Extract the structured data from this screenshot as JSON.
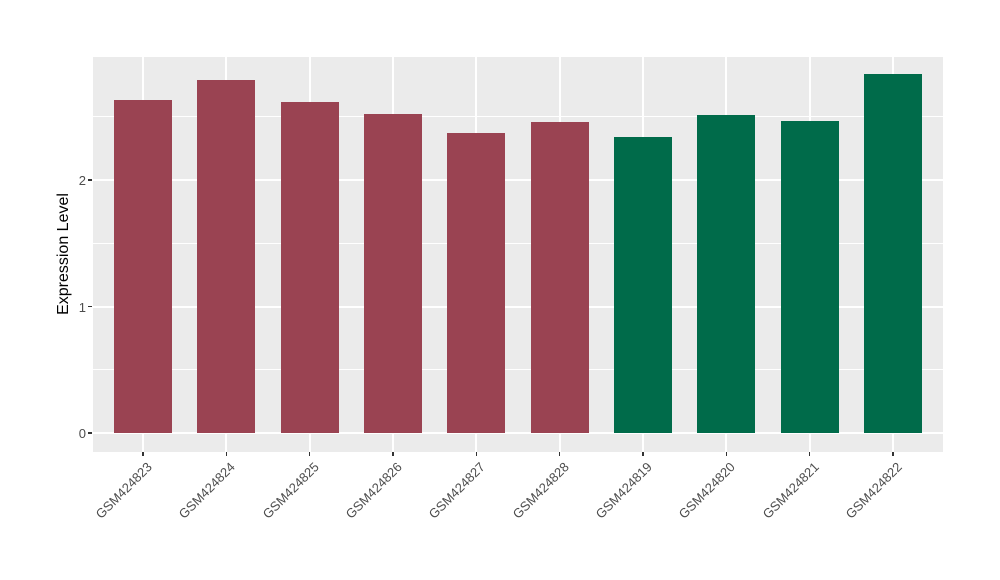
{
  "chart_data": {
    "type": "bar",
    "title": "",
    "xlabel": "",
    "ylabel": "Expression Level",
    "categories": [
      "GSM424823",
      "GSM424824",
      "GSM424825",
      "GSM424826",
      "GSM424827",
      "GSM424828",
      "GSM424819",
      "GSM424820",
      "GSM424821",
      "GSM424822"
    ],
    "values": [
      2.63,
      2.79,
      2.62,
      2.52,
      2.37,
      2.46,
      2.34,
      2.51,
      2.47,
      2.84
    ],
    "bar_colors": [
      "#9A4352",
      "#9A4352",
      "#9A4352",
      "#9A4352",
      "#9A4352",
      "#9A4352",
      "#006B4A",
      "#006B4A",
      "#006B4A",
      "#006B4A"
    ],
    "groups": [
      {
        "name": "group-red",
        "color": "#9A4352",
        "members": [
          "GSM424823",
          "GSM424824",
          "GSM424825",
          "GSM424826",
          "GSM424827",
          "GSM424828"
        ]
      },
      {
        "name": "group-green",
        "color": "#006B4A",
        "members": [
          "GSM424819",
          "GSM424820",
          "GSM424821",
          "GSM424822"
        ]
      }
    ],
    "yticks": [
      0,
      1,
      2
    ],
    "ytick_labels": [
      "0",
      "1",
      "2"
    ],
    "minor_yticks": [
      0.5,
      1.5,
      2.5
    ],
    "ylim": [
      -0.15,
      2.97
    ],
    "grid": "on",
    "legend": "none",
    "panel_background": "#EBEBEB",
    "gridline_color": "#FFFFFF",
    "axis_text_color": "#4D4D4D",
    "x_label_rotation_deg": 45
  }
}
